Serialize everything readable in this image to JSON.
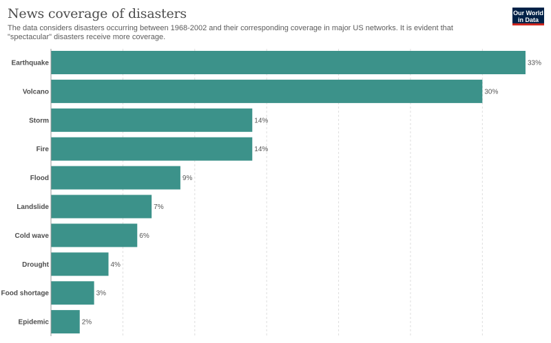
{
  "header": {
    "title": "News coverage of disasters",
    "subtitle": "The data considers disasters occurring between 1968-2002 and their corresponding coverage in major US networks. It is evident that \"spectacular\" disasters receive more coverage.",
    "logo_line1": "Our World",
    "logo_line2": "in Data"
  },
  "colors": {
    "bar": "#3c928a",
    "grid": "#dddddd",
    "text": "#4d4d4d",
    "logo_bg": "#002147",
    "logo_accent": "#ce261e"
  },
  "chart_data": {
    "type": "bar",
    "orientation": "horizontal",
    "categories": [
      "Earthquake",
      "Volcano",
      "Storm",
      "Fire",
      "Flood",
      "Landslide",
      "Cold wave",
      "Drought",
      "Food shortage",
      "Epidemic"
    ],
    "values": [
      33,
      30,
      14,
      14,
      9,
      7,
      6,
      4,
      3,
      2
    ],
    "value_labels": [
      "33%",
      "30%",
      "14%",
      "14%",
      "9%",
      "7%",
      "6%",
      "4%",
      "3%",
      "2%"
    ],
    "unit": "%",
    "xlim": [
      0,
      33
    ],
    "grid_values": [
      0,
      5,
      10,
      15,
      20,
      25,
      30
    ],
    "grid": "vertical dashed"
  }
}
